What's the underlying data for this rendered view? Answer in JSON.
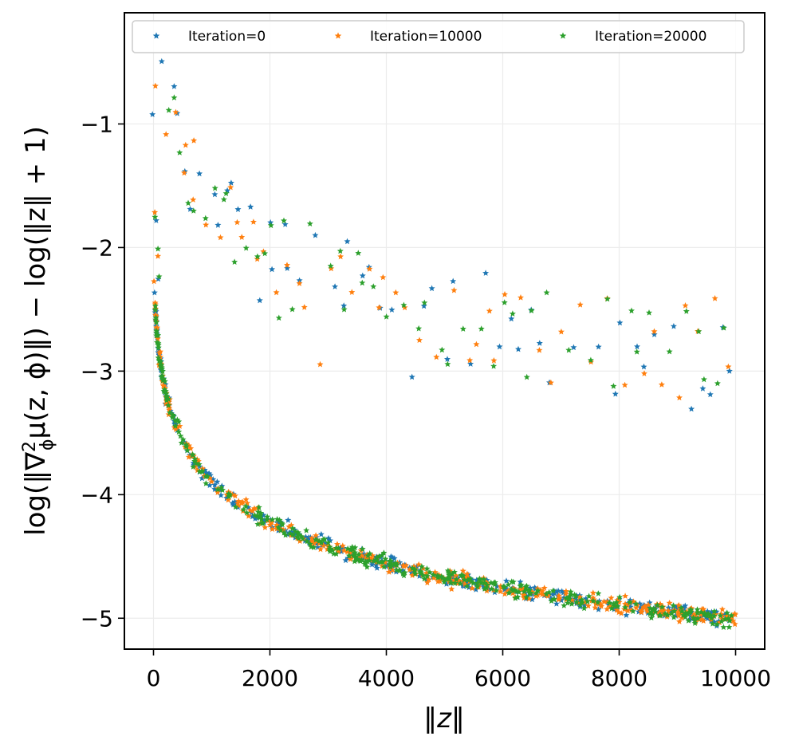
{
  "chart_data": {
    "type": "scatter",
    "title": "",
    "xlabel": "‖z‖",
    "ylabel": "log(‖∇²ϕμ(z, ϕ)‖) − log(‖z‖ + 1)",
    "ylabel_parts": {
      "before": "log(‖∇",
      "sup": "2",
      "sub": "ϕ",
      "after": "μ(z, ϕ)‖) − log(‖z‖ + 1)"
    },
    "xlim": [
      -500,
      10500
    ],
    "ylim": [
      -5.25,
      -0.1
    ],
    "xticks": [
      0,
      2000,
      4000,
      6000,
      8000,
      10000
    ],
    "xtick_labels": [
      "0",
      "2000",
      "4000",
      "6000",
      "8000",
      "10000"
    ],
    "yticks": [
      -1,
      -2,
      -3,
      -4,
      -5
    ],
    "ytick_labels": [
      "−1",
      "−2",
      "−3",
      "−4",
      "−5"
    ],
    "grid": true,
    "legend_position": "top",
    "legend_columns": 3,
    "marker": "star",
    "series": [
      {
        "name": "Iteration=0",
        "color": "#1f77b4"
      },
      {
        "name": "Iteration=10000",
        "color": "#ff7f0e"
      },
      {
        "name": "Iteration=20000",
        "color": "#2ca02c"
      }
    ],
    "curve_model": {
      "description": "dense lower band follows y = a + b*ln(x + c)",
      "a": -0.49,
      "b": -0.49,
      "c": 30,
      "noise": 0.045,
      "points_per_series": 330
    },
    "outlier_points": [
      [
        0,
        -0.88
      ],
      [
        20,
        -0.75
      ],
      [
        30,
        -1.72
      ],
      [
        40,
        -1.78
      ],
      [
        60,
        -2.05
      ],
      [
        80,
        -2.2
      ],
      [
        150,
        -0.48
      ],
      [
        200,
        -1.05
      ],
      [
        280,
        -0.83
      ],
      [
        360,
        -0.75
      ],
      [
        400,
        -0.95
      ],
      [
        460,
        -1.28
      ],
      [
        520,
        -1.35
      ],
      [
        560,
        -1.22
      ],
      [
        600,
        -1.66
      ],
      [
        620,
        -1.64
      ],
      [
        680,
        -1.12
      ],
      [
        700,
        -1.65
      ],
      [
        800,
        -1.42
      ],
      [
        900,
        -1.8
      ],
      [
        1050,
        -1.52
      ],
      [
        1100,
        -1.82
      ],
      [
        1150,
        -1.92
      ],
      [
        1200,
        -1.58
      ],
      [
        1260,
        -1.55
      ],
      [
        1320,
        -1.52
      ],
      [
        1400,
        -2.16
      ],
      [
        1450,
        -1.75
      ],
      [
        1500,
        -1.95
      ],
      [
        1600,
        -2.05
      ],
      [
        1680,
        -1.68
      ],
      [
        1720,
        -1.75
      ],
      [
        1800,
        -2.1
      ],
      [
        1820,
        -2.48
      ],
      [
        1900,
        -2.0
      ],
      [
        2000,
        -1.82
      ],
      [
        2050,
        -2.22
      ],
      [
        2100,
        -2.42
      ],
      [
        2150,
        -2.52
      ],
      [
        2250,
        -1.76
      ],
      [
        2300,
        -2.2
      ],
      [
        2400,
        -2.46
      ],
      [
        2500,
        -2.28
      ],
      [
        2600,
        -2.5
      ],
      [
        2700,
        -1.85
      ],
      [
        2780,
        -1.92
      ],
      [
        2880,
        -2.96
      ],
      [
        3050,
        -2.18
      ],
      [
        3100,
        -2.3
      ],
      [
        3220,
        -2.02
      ],
      [
        3280,
        -2.48
      ],
      [
        3320,
        -1.96
      ],
      [
        3400,
        -2.4
      ],
      [
        3500,
        -2.1
      ],
      [
        3600,
        -2.23
      ],
      [
        3700,
        -2.2
      ],
      [
        3780,
        -2.3
      ],
      [
        3880,
        -2.5
      ],
      [
        3950,
        -2.3
      ],
      [
        4000,
        -2.62
      ],
      [
        4080,
        -2.48
      ],
      [
        4180,
        -2.35
      ],
      [
        4300,
        -2.48
      ],
      [
        4450,
        -3.0
      ],
      [
        4550,
        -2.7
      ],
      [
        4650,
        -2.48
      ],
      [
        4800,
        -2.32
      ],
      [
        4850,
        -2.93
      ],
      [
        4950,
        -2.88
      ],
      [
        5050,
        -2.96
      ],
      [
        5150,
        -2.32
      ],
      [
        5300,
        -2.68
      ],
      [
        5450,
        -2.95
      ],
      [
        5560,
        -2.82
      ],
      [
        5650,
        -2.6
      ],
      [
        5700,
        -2.25
      ],
      [
        5760,
        -2.52
      ],
      [
        5850,
        -2.95
      ],
      [
        5950,
        -2.78
      ],
      [
        6050,
        -2.4
      ],
      [
        6150,
        -2.55
      ],
      [
        6250,
        -2.8
      ],
      [
        6300,
        -2.35
      ],
      [
        6420,
        -3.08
      ],
      [
        6500,
        -2.46
      ],
      [
        6620,
        -2.78
      ],
      [
        6750,
        -2.4
      ],
      [
        6820,
        -3.05
      ],
      [
        7000,
        -2.63
      ],
      [
        7120,
        -2.86
      ],
      [
        7200,
        -2.85
      ],
      [
        7350,
        -2.45
      ],
      [
        7500,
        -2.95
      ],
      [
        7650,
        -2.75
      ],
      [
        7800,
        -2.38
      ],
      [
        7920,
        -3.14
      ],
      [
        8000,
        -2.62
      ],
      [
        8100,
        -3.1
      ],
      [
        8200,
        -2.54
      ],
      [
        8300,
        -2.85
      ],
      [
        8420,
        -3.0
      ],
      [
        8500,
        -2.55
      ],
      [
        8600,
        -2.7
      ],
      [
        8750,
        -3.08
      ],
      [
        8850,
        -2.9
      ],
      [
        8950,
        -2.58
      ],
      [
        9050,
        -3.16
      ],
      [
        9150,
        -2.47
      ],
      [
        9250,
        -3.28
      ],
      [
        9350,
        -2.72
      ],
      [
        9450,
        -3.1
      ],
      [
        9550,
        -3.2
      ],
      [
        9650,
        -2.42
      ],
      [
        9700,
        -3.15
      ],
      [
        9800,
        -2.7
      ],
      [
        9880,
        -2.98
      ]
    ]
  }
}
